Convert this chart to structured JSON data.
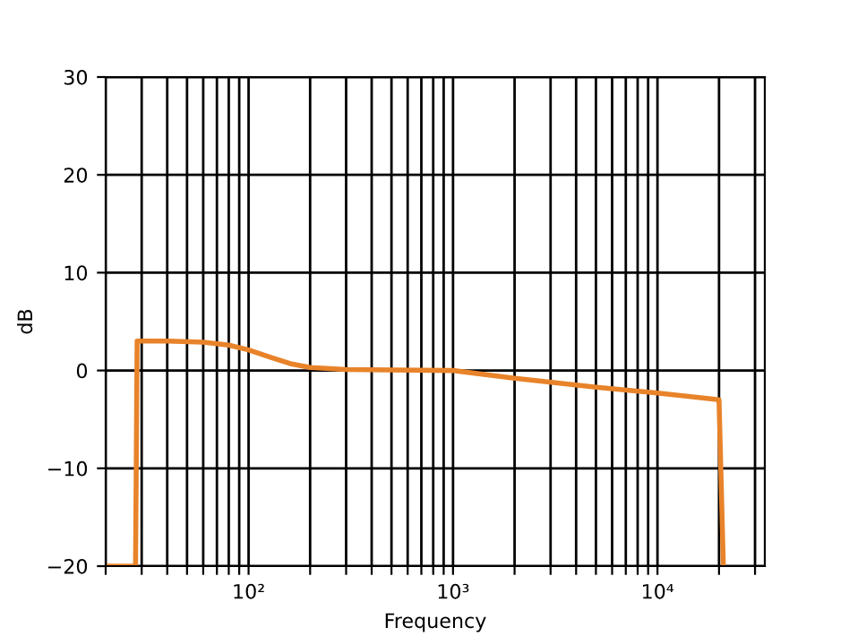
{
  "chart_data": {
    "type": "line",
    "xlabel": "Frequency",
    "ylabel": "dB",
    "log": "x",
    "grid": true,
    "marker": "none",
    "line_style": "solid",
    "series": [
      {
        "color": "#e8832a",
        "x": [
          20,
          28,
          28.5,
          40,
          60,
          80,
          100,
          130,
          160,
          200,
          300,
          500,
          1000,
          2000,
          5000,
          10000,
          20000,
          21000
        ],
        "values": [
          -20,
          -20,
          3,
          3,
          2.9,
          2.6,
          2.1,
          1.3,
          0.7,
          0.3,
          0.1,
          0.05,
          0,
          -0.8,
          -1.7,
          -2.3,
          -3,
          -20
        ]
      }
    ],
    "xlim": [
      20,
      33500
    ],
    "ylim": [
      -20,
      30
    ],
    "xticks": [
      {
        "value": 20,
        "label": null
      },
      {
        "value": 30,
        "label": null
      },
      {
        "value": 40,
        "label": null
      },
      {
        "value": 50,
        "label": null
      },
      {
        "value": 60,
        "label": null
      },
      {
        "value": 70,
        "label": null
      },
      {
        "value": 80,
        "label": null
      },
      {
        "value": 90,
        "label": null
      },
      {
        "value": 100,
        "label": "10²"
      },
      {
        "value": 200,
        "label": null
      },
      {
        "value": 300,
        "label": null
      },
      {
        "value": 400,
        "label": null
      },
      {
        "value": 500,
        "label": null
      },
      {
        "value": 600,
        "label": null
      },
      {
        "value": 700,
        "label": null
      },
      {
        "value": 800,
        "label": null
      },
      {
        "value": 900,
        "label": null
      },
      {
        "value": 1000,
        "label": "10³"
      },
      {
        "value": 2000,
        "label": null
      },
      {
        "value": 3000,
        "label": null
      },
      {
        "value": 4000,
        "label": null
      },
      {
        "value": 5000,
        "label": null
      },
      {
        "value": 6000,
        "label": null
      },
      {
        "value": 7000,
        "label": null
      },
      {
        "value": 8000,
        "label": null
      },
      {
        "value": 9000,
        "label": null
      },
      {
        "value": 10000,
        "label": "10⁴"
      },
      {
        "value": 20000,
        "label": null
      },
      {
        "value": 30000,
        "label": null
      }
    ],
    "yticks": [
      {
        "value": -20,
        "label": "−20"
      },
      {
        "value": -10,
        "label": "−10"
      },
      0,
      10,
      20,
      30
    ]
  }
}
